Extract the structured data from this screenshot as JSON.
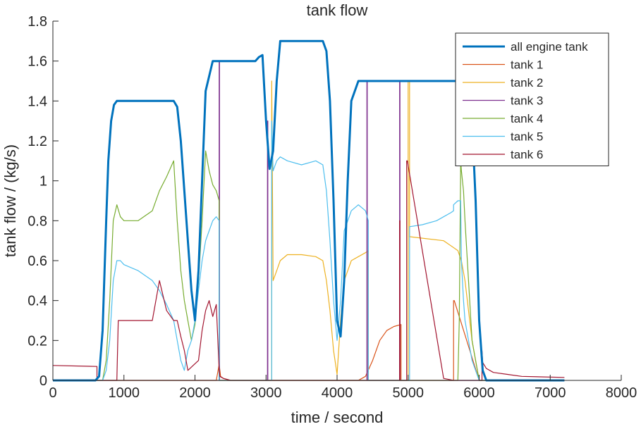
{
  "chart_data": {
    "type": "line",
    "title": "tank flow",
    "xlabel": "time / second",
    "ylabel": "tank flow / (kg/s)",
    "xlim": [
      0,
      8000
    ],
    "ylim": [
      0,
      1.8
    ],
    "xticks": [
      "0",
      "1000",
      "2000",
      "3000",
      "4000",
      "5000",
      "6000",
      "7000",
      "8000"
    ],
    "yticks": [
      "0",
      "0.2",
      "0.4",
      "0.6",
      "0.8",
      "1",
      "1.2",
      "1.4",
      "1.6",
      "1.8"
    ],
    "grid": false,
    "legend_position": "top-right",
    "series": [
      {
        "name": "all engine tank",
        "color": "#0072BD",
        "thick": true,
        "x": [
          0,
          600,
          650,
          700,
          750,
          780,
          820,
          860,
          900,
          950,
          1000,
          1700,
          1750,
          1800,
          1850,
          1900,
          1950,
          2000,
          2050,
          2100,
          2150,
          2250,
          2850,
          2900,
          2950,
          3000,
          3050,
          3100,
          3150,
          3200,
          3800,
          3850,
          3900,
          3950,
          4000,
          4050,
          4100,
          4150,
          4200,
          4300,
          5000,
          5500,
          5800,
          5900,
          5950,
          6000,
          6050,
          6100,
          7200
        ],
        "y": [
          0,
          0,
          0.02,
          0.25,
          0.8,
          1.1,
          1.3,
          1.38,
          1.4,
          1.4,
          1.4,
          1.4,
          1.37,
          1.2,
          0.95,
          0.7,
          0.45,
          0.3,
          0.55,
          1.0,
          1.45,
          1.6,
          1.6,
          1.62,
          1.63,
          1.3,
          1.06,
          1.15,
          1.5,
          1.7,
          1.7,
          1.65,
          1.4,
          0.9,
          0.3,
          0.22,
          0.5,
          1.0,
          1.4,
          1.5,
          1.5,
          1.5,
          1.5,
          1.3,
          0.9,
          0.3,
          0.05,
          0,
          0
        ]
      },
      {
        "name": "tank 1",
        "color": "#D95319",
        "thick": false,
        "x": [
          0,
          2300,
          2340,
          2360,
          2400,
          2500,
          4300,
          4400,
          4500,
          4600,
          4700,
          4800,
          4900,
          4900,
          5640,
          5640,
          5650,
          6000,
          7200
        ],
        "y": [
          0,
          0,
          0.08,
          0.02,
          0.01,
          0,
          0,
          0.02,
          0.1,
          0.2,
          0.25,
          0.27,
          0.28,
          0,
          0,
          0.4,
          0.4,
          0,
          0
        ]
      },
      {
        "name": "tank 2",
        "color": "#EDB120",
        "thick": false,
        "x": [
          0,
          3080,
          3080,
          3100,
          3150,
          3200,
          3300,
          3500,
          3700,
          3800,
          3850,
          3900,
          3950,
          4000,
          4050,
          4100,
          4200,
          4300,
          4400,
          4440,
          4440,
          5000,
          5000,
          5020,
          5020,
          5500,
          5700,
          5750,
          5800,
          5900,
          6000,
          7200
        ],
        "y": [
          0,
          0,
          1.5,
          0.5,
          0.55,
          0.6,
          0.63,
          0.63,
          0.62,
          0.6,
          0.5,
          0.35,
          0.15,
          0.03,
          0.3,
          0.5,
          0.6,
          0.62,
          0.64,
          0.65,
          0,
          0,
          1.5,
          1.5,
          0.72,
          0.7,
          0.65,
          0.6,
          0.5,
          0.2,
          0,
          0
        ]
      },
      {
        "name": "tank 3",
        "color": "#7E2F8E",
        "thick": false,
        "x": [
          0,
          2340,
          2340,
          2345,
          2345,
          3020,
          3020,
          3025,
          3025,
          4420,
          4420,
          4425,
          4425,
          4880,
          4880,
          4885,
          4885,
          7200
        ],
        "y": [
          0,
          0,
          1.6,
          1.6,
          0,
          0,
          1.3,
          1.3,
          0,
          0,
          1.5,
          1.5,
          0,
          0,
          1.5,
          1.5,
          0,
          0
        ]
      },
      {
        "name": "tank 4",
        "color": "#77AC30",
        "thick": false,
        "x": [
          0,
          700,
          750,
          800,
          850,
          900,
          950,
          1000,
          1200,
          1400,
          1500,
          1600,
          1700,
          1750,
          1800,
          1850,
          1900,
          1950,
          2000,
          2050,
          2100,
          2150,
          2200,
          2250,
          2300,
          2340,
          2340,
          5700,
          5720,
          5740,
          5750,
          5780,
          5800,
          5850,
          5900,
          6000,
          7200
        ],
        "y": [
          0,
          0,
          0.1,
          0.4,
          0.8,
          0.88,
          0.82,
          0.8,
          0.8,
          0.85,
          0.95,
          1.02,
          1.1,
          0.8,
          0.55,
          0.4,
          0.3,
          0.2,
          0.28,
          0.5,
          0.8,
          1.15,
          1.05,
          0.98,
          0.95,
          0.9,
          0,
          0,
          0.3,
          1.1,
          1.05,
          0.95,
          0.8,
          0.5,
          0.2,
          0,
          0
        ]
      },
      {
        "name": "tank 5",
        "color": "#4DBEEE",
        "thick": false,
        "x": [
          0,
          700,
          750,
          800,
          850,
          900,
          950,
          1000,
          1200,
          1400,
          1500,
          1600,
          1700,
          1750,
          1800,
          1850,
          1900,
          1950,
          2000,
          2050,
          2100,
          2150,
          2200,
          2250,
          2300,
          2340,
          2340,
          3080,
          3080,
          3100,
          3150,
          3200,
          3300,
          3500,
          3700,
          3800,
          3850,
          3900,
          3950,
          4000,
          4050,
          4100,
          4200,
          4300,
          4400,
          4440,
          4440,
          5020,
          5020,
          5200,
          5400,
          5500,
          5600,
          5640,
          5640,
          5700,
          5740,
          5750,
          5780,
          5800,
          5850,
          5900,
          6000,
          7200
        ],
        "y": [
          0,
          0,
          0.05,
          0.2,
          0.5,
          0.6,
          0.6,
          0.58,
          0.55,
          0.5,
          0.45,
          0.38,
          0.3,
          0.2,
          0.1,
          0.05,
          0.15,
          0.2,
          0.3,
          0.45,
          0.6,
          0.7,
          0.75,
          0.8,
          0.82,
          0.8,
          0,
          0,
          1.3,
          1.05,
          1.1,
          1.12,
          1.1,
          1.08,
          1.1,
          1.08,
          0.95,
          0.7,
          0.4,
          0.2,
          0.4,
          0.75,
          0.85,
          0.88,
          0.85,
          0.8,
          0,
          0,
          0.77,
          0.78,
          0.8,
          0.82,
          0.84,
          0.85,
          0.88,
          0.9,
          0.9,
          0.6,
          0.4,
          0.3,
          0.2,
          0.1,
          0,
          0
        ]
      },
      {
        "name": "tank 6",
        "color": "#A2142F",
        "thick": false,
        "x": [
          0,
          620,
          620,
          900,
          920,
          1000,
          1200,
          1400,
          1500,
          1600,
          1700,
          1750,
          1800,
          1850,
          1900,
          2050,
          2100,
          2150,
          2200,
          2250,
          2300,
          2340,
          2350,
          2400,
          2500,
          3000,
          4800,
          4880,
          4880,
          4885,
          4885,
          4980,
          4980,
          4990,
          5500,
          5640,
          5640,
          6040,
          6040,
          6050,
          6100,
          6200,
          6400,
          6600,
          7200
        ],
        "y": [
          0.075,
          0.07,
          0,
          0,
          0.3,
          0.3,
          0.3,
          0.3,
          0.5,
          0.35,
          0.3,
          0.3,
          0.22,
          0.15,
          0.05,
          0.1,
          0.25,
          0.35,
          0.4,
          0.32,
          0.38,
          0.05,
          0.02,
          0.01,
          0,
          0,
          0,
          0,
          0.8,
          0.8,
          0,
          0,
          1.1,
          1.1,
          0.01,
          0,
          0,
          0,
          0.15,
          0.09,
          0.06,
          0.04,
          0.03,
          0.02,
          0.015
        ]
      }
    ]
  }
}
